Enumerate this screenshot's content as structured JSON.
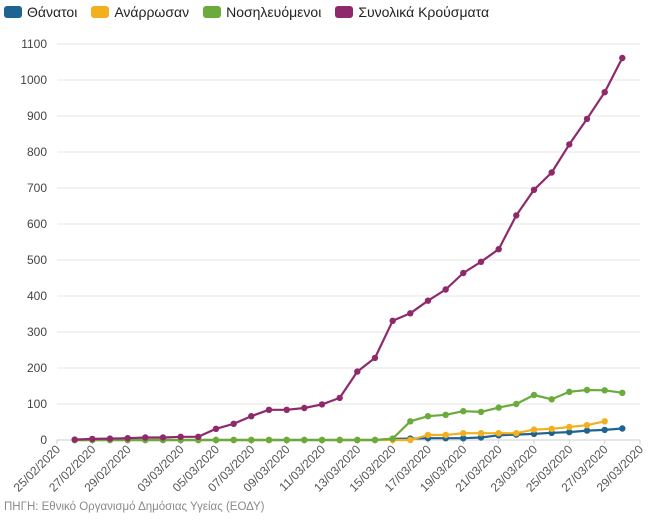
{
  "chart_data": {
    "type": "line",
    "title": "",
    "xlabel": "",
    "ylabel": "",
    "ylim": [
      0,
      1100
    ],
    "yticks": [
      0,
      100,
      200,
      300,
      400,
      500,
      600,
      700,
      800,
      900,
      1000,
      1100
    ],
    "xrange": [
      "2020-02-25",
      "2020-03-29"
    ],
    "xtick_labels": [
      "25/02/2020",
      "27/02/2020",
      "29/02/2020",
      "03/03/2020",
      "05/03/2020",
      "07/03/2020",
      "09/03/2020",
      "11/03/2020",
      "13/03/2020",
      "15/03/2020",
      "17/03/2020",
      "19/03/2020",
      "21/03/2020",
      "23/03/2020",
      "25/03/2020",
      "27/03/2020",
      "29/03/2020"
    ],
    "legend_position": "top-left",
    "grid": "horizontal",
    "dates": [
      "2020-02-26",
      "2020-02-27",
      "2020-02-28",
      "2020-02-29",
      "2020-03-01",
      "2020-03-02",
      "2020-03-03",
      "2020-03-04",
      "2020-03-05",
      "2020-03-06",
      "2020-03-07",
      "2020-03-08",
      "2020-03-09",
      "2020-03-10",
      "2020-03-11",
      "2020-03-12",
      "2020-03-13",
      "2020-03-14",
      "2020-03-15",
      "2020-03-16",
      "2020-03-17",
      "2020-03-18",
      "2020-03-19",
      "2020-03-20",
      "2020-03-21",
      "2020-03-22",
      "2020-03-23",
      "2020-03-24",
      "2020-03-25",
      "2020-03-26",
      "2020-03-27",
      "2020-03-28"
    ],
    "series": [
      {
        "name": "Θάνατοι",
        "color": "#1f6391",
        "values": [
          0,
          0,
          0,
          0,
          0,
          0,
          0,
          0,
          0,
          0,
          0,
          0,
          0,
          0,
          0,
          0,
          0,
          0,
          3,
          4,
          5,
          5,
          5,
          7,
          13,
          15,
          17,
          20,
          22,
          26,
          28,
          32
        ]
      },
      {
        "name": "Ανάρρωσαν",
        "color": "#f2b01e",
        "values": [
          0,
          0,
          0,
          0,
          0,
          0,
          0,
          0,
          0,
          0,
          0,
          0,
          0,
          0,
          0,
          0,
          0,
          0,
          0,
          0,
          14,
          14,
          19,
          19,
          19,
          19,
          29,
          31,
          36,
          41,
          52,
          null
        ]
      },
      {
        "name": "Νοσηλευόμενοι",
        "color": "#6aab3c",
        "values": [
          0,
          0,
          0,
          0,
          0,
          0,
          0,
          0,
          0,
          0,
          0,
          0,
          0,
          0,
          0,
          0,
          0,
          0,
          4,
          52,
          66,
          70,
          80,
          78,
          90,
          100,
          125,
          113,
          134,
          139,
          138,
          131
        ]
      },
      {
        "name": "Συνολικά Κρούσματα",
        "color": "#8e2a6b",
        "values": [
          1,
          3,
          4,
          5,
          7,
          7,
          9,
          9,
          31,
          45,
          66,
          84,
          84,
          89,
          99,
          117,
          190,
          228,
          331,
          352,
          387,
          418,
          464,
          495,
          530,
          624,
          695,
          743,
          821,
          892,
          966,
          1061
        ]
      }
    ]
  },
  "source": "ΠΗΓΗ: Εθνικό Οργανισμό Δημόσιας Υγείας (ΕΟΔΥ)"
}
